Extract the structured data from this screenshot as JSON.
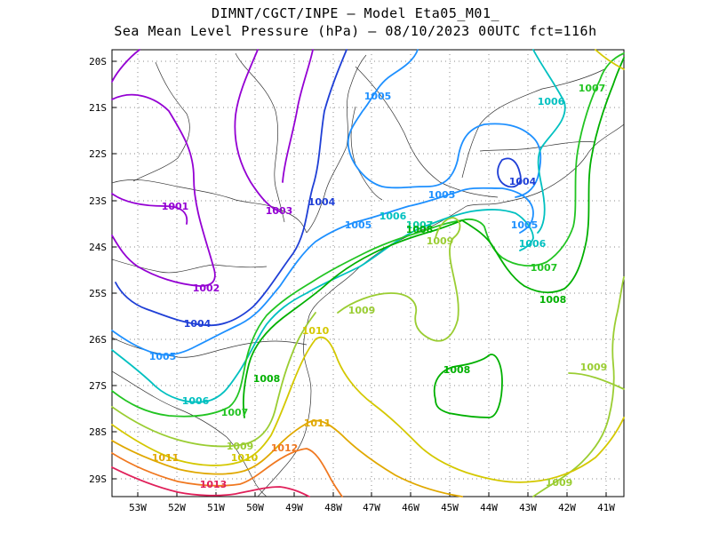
{
  "title_line1": "DIMNT/CGCT/INPE –  Model Eta05_M01_",
  "title_line2": "Sea Mean Level Pressure (hPa) – 08/10/2023 00UTC fct=116h",
  "lat_labels": [
    "20S",
    "21S",
    "22S",
    "23S",
    "24S",
    "25S",
    "26S",
    "27S",
    "28S",
    "29S"
  ],
  "lon_labels": [
    "53W",
    "52W",
    "51W",
    "50W",
    "49W",
    "48W",
    "47W",
    "46W",
    "45W",
    "44W",
    "43W",
    "42W",
    "41W"
  ],
  "contour_labels": [
    {
      "text": "1001",
      "color": "#9400d3"
    },
    {
      "text": "1002",
      "color": "#9400d3"
    },
    {
      "text": "1003",
      "color": "#9400d3"
    },
    {
      "text": "1004",
      "color": "#1f3fd6"
    },
    {
      "text": "1004",
      "color": "#1f3fd6"
    },
    {
      "text": "1004",
      "color": "#1f3fd6"
    },
    {
      "text": "1005",
      "color": "#1e90ff"
    },
    {
      "text": "1005",
      "color": "#1e90ff"
    },
    {
      "text": "1005",
      "color": "#1e90ff"
    },
    {
      "text": "1005",
      "color": "#1e90ff"
    },
    {
      "text": "1005",
      "color": "#1e90ff"
    },
    {
      "text": "1006",
      "color": "#00c0c0"
    },
    {
      "text": "1006",
      "color": "#00c0c0"
    },
    {
      "text": "1006",
      "color": "#00c0c0"
    },
    {
      "text": "1006",
      "color": "#00c0c0"
    },
    {
      "text": "1007",
      "color": "#00c8a0"
    },
    {
      "text": "1007",
      "color": "#22c422"
    },
    {
      "text": "1007",
      "color": "#22c422"
    },
    {
      "text": "1007",
      "color": "#22c422"
    },
    {
      "text": "1008",
      "color": "#00b000"
    },
    {
      "text": "1008",
      "color": "#00b000"
    },
    {
      "text": "1008",
      "color": "#00b000"
    },
    {
      "text": "1008",
      "color": "#00b000"
    },
    {
      "text": "1009",
      "color": "#9acd32"
    },
    {
      "text": "1009",
      "color": "#9acd32"
    },
    {
      "text": "1009",
      "color": "#9acd32"
    },
    {
      "text": "1009",
      "color": "#9acd32"
    },
    {
      "text": "1009",
      "color": "#9acd32"
    },
    {
      "text": "1010",
      "color": "#d4c800"
    },
    {
      "text": "1010",
      "color": "#d4c800"
    },
    {
      "text": "1011",
      "color": "#e0a800"
    },
    {
      "text": "1011",
      "color": "#e0a800"
    },
    {
      "text": "1012",
      "color": "#f07820"
    },
    {
      "text": "1013",
      "color": "#e0205a"
    }
  ]
}
